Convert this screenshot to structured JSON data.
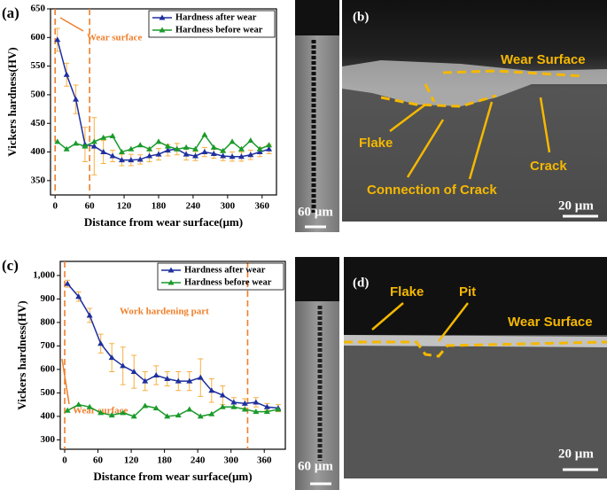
{
  "chart_data": [
    {
      "type": "line",
      "panel_label": "(a)",
      "xlabel": "Distance from wear surface(µm)",
      "ylabel": "Vickers hardness(HV)",
      "x": [
        4,
        20,
        36,
        52,
        68,
        84,
        100,
        116,
        132,
        148,
        164,
        180,
        196,
        212,
        228,
        244,
        260,
        276,
        292,
        308,
        324,
        340,
        356,
        372
      ],
      "series": [
        {
          "name": "Hardness after wear",
          "color": "#1f2f9e",
          "values": [
            596,
            535,
            492,
            413,
            410,
            400,
            393,
            386,
            386,
            387,
            393,
            396,
            403,
            405,
            396,
            393,
            400,
            397,
            393,
            392,
            392,
            395,
            400,
            405
          ],
          "errors": [
            20,
            20,
            25,
            30,
            50,
            20,
            10,
            10,
            10,
            8,
            10,
            10,
            10,
            10,
            10,
            8,
            8,
            8,
            8,
            8,
            8,
            8,
            8,
            8
          ]
        },
        {
          "name": "Hardness before wear",
          "color": "#1a9a2a",
          "values": [
            418,
            405,
            415,
            410,
            418,
            425,
            428,
            400,
            405,
            412,
            405,
            418,
            410,
            405,
            408,
            405,
            430,
            408,
            402,
            418,
            405,
            420,
            405,
            412
          ]
        }
      ],
      "xlim": [
        -8,
        385
      ],
      "xticks": [
        0,
        60,
        120,
        180,
        240,
        300,
        360
      ],
      "ylim": [
        325,
        650
      ],
      "yticks": [
        350,
        400,
        450,
        500,
        550,
        600,
        650
      ],
      "vlines": [
        0,
        60
      ],
      "annotations": [
        "Wear surface"
      ],
      "legend": "upper right"
    },
    {
      "type": "line",
      "panel_label": "(c)",
      "xlabel": "Distance from wear surface(µm)",
      "ylabel": "Vickers hardness(HV)",
      "x": [
        5,
        25,
        45,
        65,
        85,
        105,
        125,
        145,
        165,
        185,
        205,
        225,
        245,
        265,
        285,
        305,
        325,
        345,
        365,
        385
      ],
      "series": [
        {
          "name": "Hardness after wear",
          "color": "#1f2f9e",
          "values": [
            965,
            910,
            830,
            710,
            650,
            615,
            590,
            550,
            575,
            560,
            550,
            550,
            565,
            510,
            490,
            460,
            455,
            460,
            440,
            435
          ],
          "errors": [
            15,
            20,
            30,
            40,
            60,
            80,
            70,
            40,
            40,
            30,
            40,
            40,
            80,
            50,
            40,
            20,
            20,
            20,
            15,
            15
          ]
        },
        {
          "name": "Hardness before wear",
          "color": "#1a9a2a",
          "values": [
            425,
            450,
            440,
            415,
            405,
            415,
            400,
            445,
            435,
            400,
            405,
            430,
            400,
            410,
            440,
            440,
            430,
            420,
            420,
            430
          ]
        }
      ],
      "xlim": [
        -8,
        398
      ],
      "xticks": [
        0,
        60,
        120,
        180,
        240,
        300,
        360
      ],
      "ylim": [
        260,
        1060
      ],
      "yticks": [
        300,
        400,
        500,
        600,
        700,
        800,
        900,
        {
          "value": 1000,
          "label": "1,000"
        }
      ],
      "vlines": [
        0,
        330
      ],
      "annotations": [
        "Work hardening part",
        "Wear surface"
      ],
      "legend": "upper right"
    }
  ],
  "micrographs": {
    "b": {
      "label": "(b)",
      "scale": "20 µm",
      "texts": [
        "Wear Surface",
        "Flake",
        "Crack",
        "Connection of Crack"
      ],
      "strip_scale": "60 µm"
    },
    "d": {
      "label": "(d)",
      "scale": "20 µm",
      "texts": [
        "Flake",
        "Pit",
        "Wear Surface"
      ],
      "strip_scale": "60 µm"
    }
  }
}
